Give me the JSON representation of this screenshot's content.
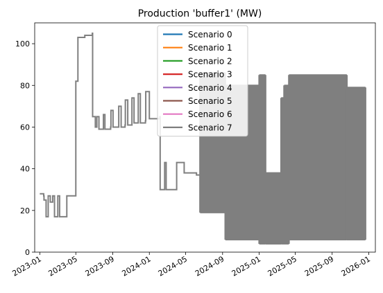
{
  "chart_data": {
    "type": "line",
    "title": "Production 'buffer1' (MW)",
    "xlabel": "",
    "ylabel": "",
    "ylim": [
      0,
      110
    ],
    "xlim": [
      "2022-12-15",
      "2026-01-23"
    ],
    "x_ticks": [
      "2023-01",
      "2023-05",
      "2023-09",
      "2024-01",
      "2024-05",
      "2024-09",
      "2025-01",
      "2025-05",
      "2025-09",
      "2026-01"
    ],
    "y_ticks": [
      0,
      20,
      40,
      60,
      80,
      100
    ],
    "grid": false,
    "legend_position": "upper center",
    "series": [
      {
        "name": "Scenario 0",
        "color": "#1f77b4"
      },
      {
        "name": "Scenario 1",
        "color": "#ff7f0e"
      },
      {
        "name": "Scenario 2",
        "color": "#2ca02c"
      },
      {
        "name": "Scenario 3",
        "color": "#d62728"
      },
      {
        "name": "Scenario 4",
        "color": "#9467bd"
      },
      {
        "name": "Scenario 5",
        "color": "#8c564b"
      },
      {
        "name": "Scenario 6",
        "color": "#e377c2"
      },
      {
        "name": "Scenario 7",
        "color": "#7f7f7f"
      }
    ],
    "step_profile": [
      [
        "2023-01-01",
        28
      ],
      [
        "2023-01-14",
        27
      ],
      [
        "2023-01-15",
        25
      ],
      [
        "2023-01-21",
        25
      ],
      [
        "2023-01-22",
        17
      ],
      [
        "2023-01-28",
        17
      ],
      [
        "2023-01-29",
        27
      ],
      [
        "2023-02-04",
        27
      ],
      [
        "2023-02-05",
        24
      ],
      [
        "2023-02-12",
        24
      ],
      [
        "2023-02-13",
        27
      ],
      [
        "2023-02-18",
        27
      ],
      [
        "2023-02-19",
        17
      ],
      [
        "2023-03-01",
        17
      ],
      [
        "2023-03-02",
        27
      ],
      [
        "2023-03-07",
        27
      ],
      [
        "2023-03-08",
        17
      ],
      [
        "2023-03-31",
        17
      ],
      [
        "2023-04-01",
        27
      ],
      [
        "2023-04-30",
        27
      ],
      [
        "2023-05-01",
        82
      ],
      [
        "2023-05-07",
        82
      ],
      [
        "2023-05-08",
        103
      ],
      [
        "2023-05-31",
        104
      ],
      [
        "2023-06-25",
        105
      ],
      [
        "2023-06-26",
        65
      ],
      [
        "2023-07-04",
        65
      ],
      [
        "2023-07-05",
        60
      ],
      [
        "2023-07-09",
        60
      ],
      [
        "2023-07-10",
        65
      ],
      [
        "2023-07-16",
        65
      ],
      [
        "2023-07-17",
        59
      ],
      [
        "2023-07-31",
        59
      ],
      [
        "2023-08-01",
        66
      ],
      [
        "2023-08-05",
        66
      ],
      [
        "2023-08-06",
        59
      ],
      [
        "2023-08-25",
        60
      ],
      [
        "2023-08-26",
        68
      ],
      [
        "2023-09-01",
        68
      ],
      [
        "2023-09-02",
        60
      ],
      [
        "2023-09-20",
        60
      ],
      [
        "2023-09-21",
        70
      ],
      [
        "2023-09-28",
        70
      ],
      [
        "2023-09-29",
        60
      ],
      [
        "2023-10-12",
        61
      ],
      [
        "2023-10-13",
        73
      ],
      [
        "2023-10-20",
        73
      ],
      [
        "2023-10-21",
        61
      ],
      [
        "2023-11-03",
        61
      ],
      [
        "2023-11-04",
        74
      ],
      [
        "2023-11-10",
        74
      ],
      [
        "2023-11-11",
        62
      ],
      [
        "2023-11-24",
        62
      ],
      [
        "2023-11-25",
        76
      ],
      [
        "2023-12-01",
        76
      ],
      [
        "2023-12-02",
        62
      ],
      [
        "2023-12-19",
        63
      ],
      [
        "2023-12-20",
        77
      ],
      [
        "2023-12-31",
        77
      ],
      [
        "2024-01-01",
        64
      ],
      [
        "2024-02-05",
        65
      ],
      [
        "2024-02-06",
        30
      ],
      [
        "2024-02-20",
        30
      ],
      [
        "2024-02-21",
        43
      ],
      [
        "2024-02-25",
        43
      ],
      [
        "2024-02-26",
        30
      ],
      [
        "2024-03-31",
        30
      ],
      [
        "2024-04-01",
        43
      ],
      [
        "2024-04-25",
        43
      ],
      [
        "2024-04-26",
        38
      ],
      [
        "2024-06-05",
        38
      ],
      [
        "2024-06-06",
        37
      ],
      [
        "2024-06-18",
        37
      ]
    ],
    "dense_regions": [
      {
        "start": "2024-06-18",
        "end": "2024-09-10",
        "low": 19,
        "high": 86
      },
      {
        "start": "2024-09-10",
        "end": "2025-01-01",
        "low": 6,
        "high": 80
      },
      {
        "start": "2025-01-01",
        "end": "2025-01-22",
        "low": 4,
        "high": 85
      },
      {
        "start": "2025-01-22",
        "end": "2025-03-15",
        "low": 4,
        "high": 38
      },
      {
        "start": "2025-03-15",
        "end": "2025-03-25",
        "low": 4,
        "high": 74
      },
      {
        "start": "2025-03-25",
        "end": "2025-04-10",
        "low": 4,
        "high": 80
      },
      {
        "start": "2025-04-10",
        "end": "2025-10-20",
        "low": 6,
        "high": 85
      },
      {
        "start": "2025-10-20",
        "end": "2025-12-21",
        "low": 6,
        "high": 79
      }
    ]
  }
}
